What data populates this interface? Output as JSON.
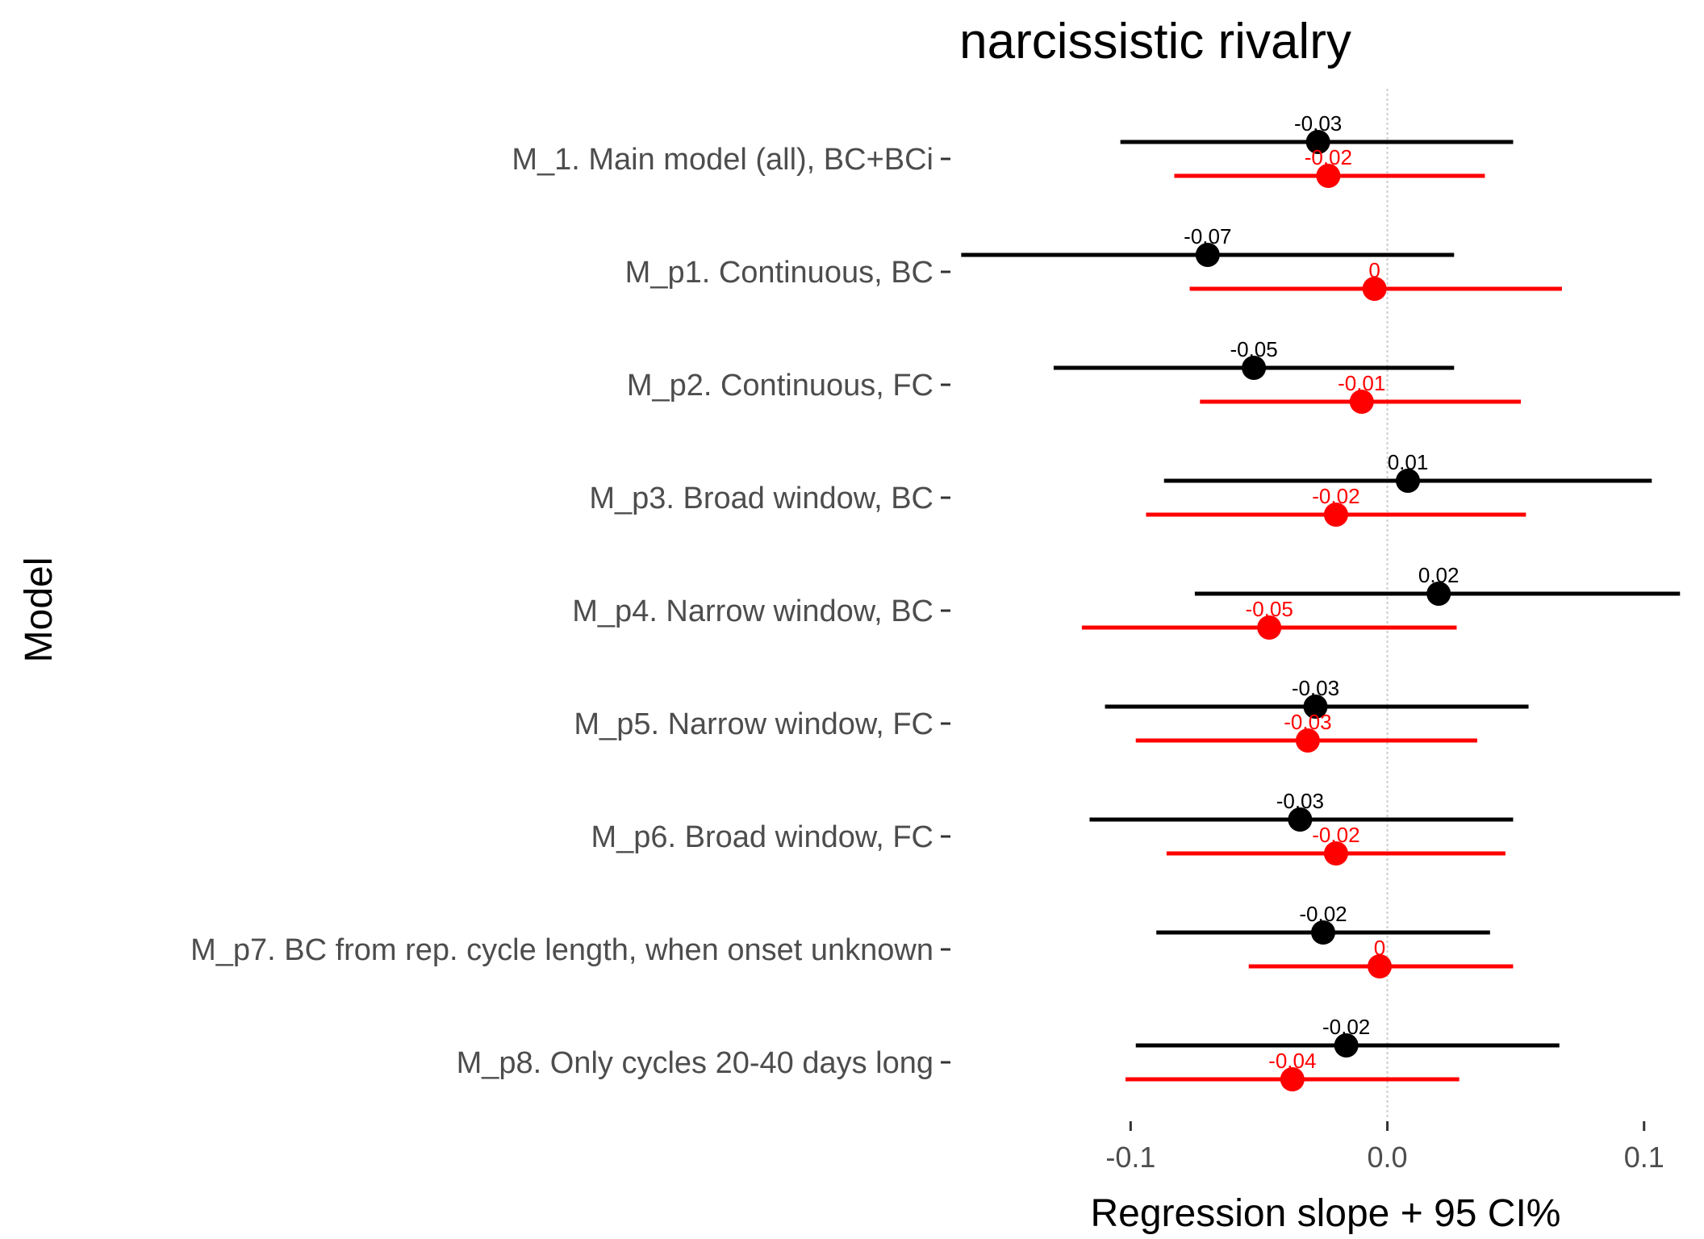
{
  "chart_data": {
    "type": "forest",
    "title": "narcissistic rivalry",
    "xlabel": "Regression slope + 95 CI%",
    "ylabel": "Model",
    "xlim": [
      -0.168,
      0.118
    ],
    "xticks": [
      -0.1,
      0.0,
      0.1
    ],
    "xtick_labels": [
      "-0.1",
      "0.0",
      "0.1"
    ],
    "reference_line": 0,
    "grid": false,
    "legend": "none",
    "colors": {
      "series1": "#000000",
      "series2": "#ff0000",
      "reference": "#cccccc",
      "tick": "#333333"
    },
    "categories": [
      "M_1. Main model (all), BC+BCi",
      "M_p1. Continuous, BC",
      "M_p2. Continuous, FC",
      "M_p3. Broad window, BC",
      "M_p4. Narrow window, BC",
      "M_p5. Narrow window, FC",
      "M_p6. Broad window, FC",
      "M_p7. BC from rep. cycle length, when onset unknown",
      "M_p8. Only cycles 20-40 days long"
    ],
    "series": [
      {
        "color": "#000000",
        "estimates": [
          -0.027,
          -0.07,
          -0.052,
          0.008,
          0.02,
          -0.028,
          -0.034,
          -0.025,
          -0.016
        ],
        "lower": [
          -0.104,
          -0.166,
          -0.13,
          -0.087,
          -0.075,
          -0.11,
          -0.116,
          -0.09,
          -0.098
        ],
        "upper": [
          0.049,
          0.026,
          0.026,
          0.103,
          0.114,
          0.055,
          0.049,
          0.04,
          0.067
        ],
        "labels": [
          "-0.03",
          "-0.07",
          "-0.05",
          "0.01",
          "0.02",
          "-0.03",
          "-0.03",
          "-0.02",
          "-0.02"
        ]
      },
      {
        "color": "#ff0000",
        "estimates": [
          -0.023,
          -0.005,
          -0.01,
          -0.02,
          -0.046,
          -0.031,
          -0.02,
          -0.003,
          -0.037
        ],
        "lower": [
          -0.083,
          -0.077,
          -0.073,
          -0.094,
          -0.119,
          -0.098,
          -0.086,
          -0.054,
          -0.102
        ],
        "upper": [
          0.038,
          0.068,
          0.052,
          0.054,
          0.027,
          0.035,
          0.046,
          0.049,
          0.028
        ],
        "labels": [
          "-0.02",
          "0",
          "-0.01",
          "-0.02",
          "-0.05",
          "-0.03",
          "-0.02",
          "0",
          "-0.04"
        ]
      }
    ]
  }
}
